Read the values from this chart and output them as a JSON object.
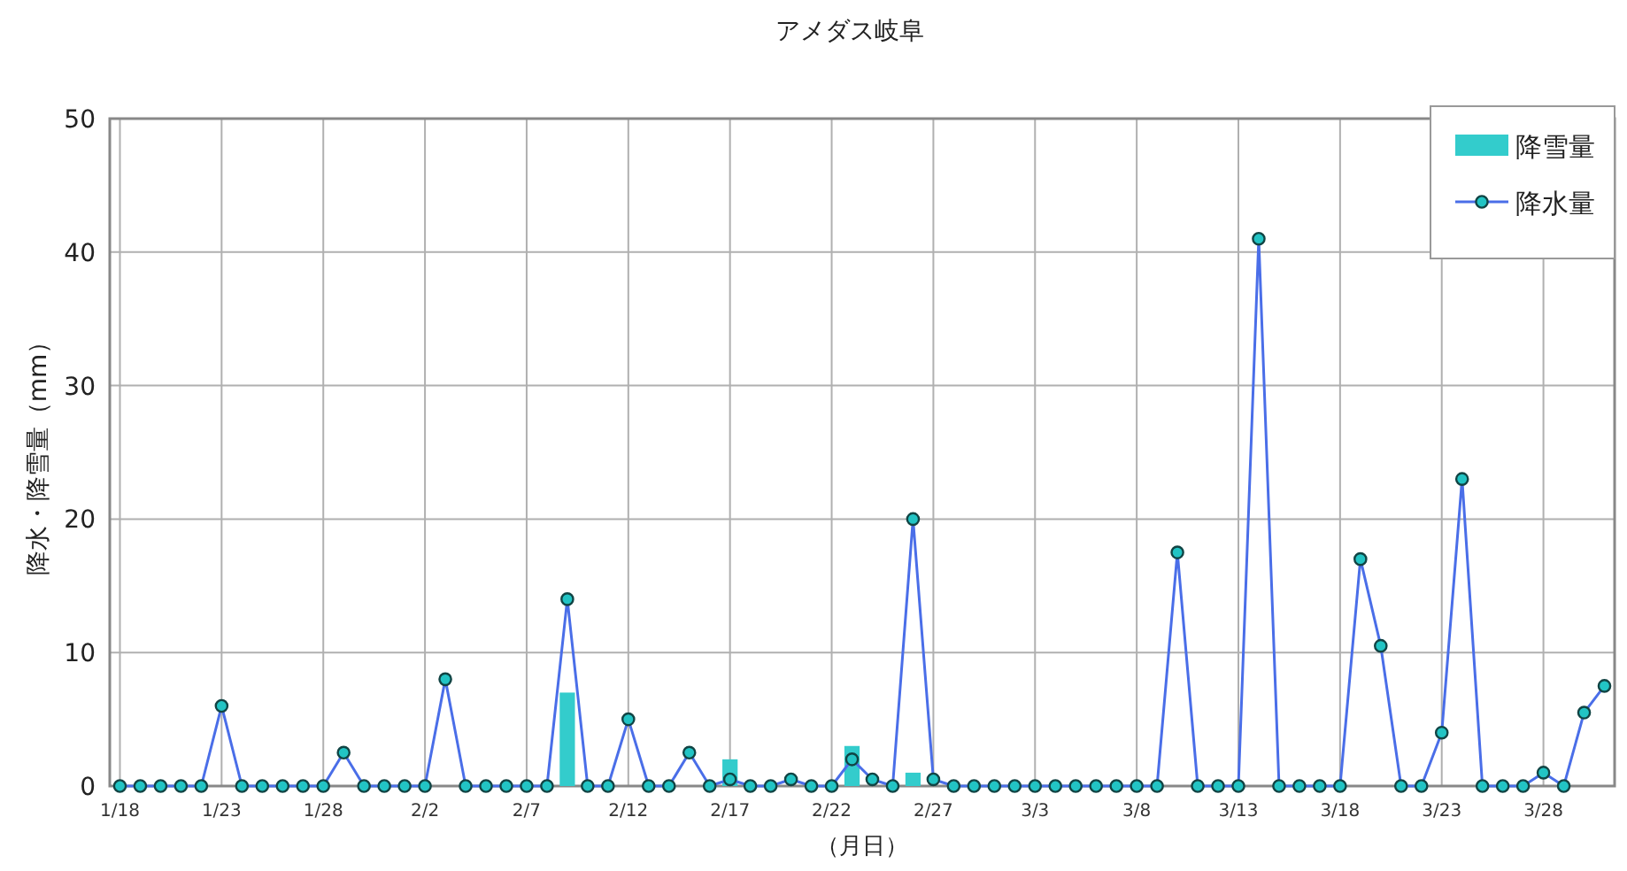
{
  "chart_data": {
    "type": "line",
    "title": "アメダス岐阜",
    "xlabel": "（月日）",
    "ylabel": "降水・降雪量（mm）",
    "categories": [
      "1/18",
      null,
      null,
      null,
      null,
      "1/23",
      null,
      null,
      null,
      null,
      "1/28",
      null,
      null,
      null,
      null,
      "2/2",
      null,
      null,
      null,
      null,
      "2/7",
      null,
      null,
      null,
      null,
      "2/12",
      null,
      null,
      null,
      null,
      "2/17",
      null,
      null,
      null,
      null,
      "2/22",
      null,
      null,
      null,
      null,
      "2/27",
      null,
      null,
      null,
      null,
      "3/3",
      null,
      null,
      null,
      null,
      "3/8",
      null,
      null,
      null,
      null,
      "3/13",
      null,
      null,
      null,
      null,
      "3/18",
      null,
      null,
      null,
      null,
      "3/23",
      null,
      null,
      null,
      null,
      "3/28",
      null,
      null,
      null
    ],
    "series": [
      {
        "name": "降雪量",
        "type": "bar",
        "color": "#33cccc",
        "values": [
          null,
          null,
          null,
          null,
          null,
          null,
          null,
          null,
          null,
          null,
          null,
          null,
          null,
          null,
          null,
          null,
          null,
          null,
          null,
          null,
          null,
          null,
          7,
          null,
          null,
          null,
          null,
          null,
          null,
          null,
          2,
          null,
          null,
          null,
          null,
          null,
          3,
          null,
          null,
          1,
          null,
          null,
          null,
          null,
          null,
          null,
          null,
          null,
          null,
          null,
          null,
          null,
          null,
          null,
          null,
          null,
          null,
          null,
          null,
          null,
          null,
          null,
          null,
          null,
          null,
          null,
          null,
          null,
          null,
          null,
          null,
          null,
          null,
          null
        ]
      },
      {
        "name": "降水量",
        "color": "#4a6ee8",
        "values": [
          0,
          0,
          0,
          0,
          0,
          6,
          0,
          0,
          0,
          0,
          0,
          2.5,
          0,
          0,
          0,
          0,
          8,
          0,
          0,
          0,
          0,
          0,
          14,
          0,
          0,
          5,
          0,
          0,
          2.5,
          0,
          0.5,
          0,
          0,
          0.5,
          0,
          0,
          2,
          0.5,
          0,
          20,
          0.5,
          0,
          0,
          0,
          0,
          0,
          0,
          0,
          0,
          0,
          0,
          0,
          17.5,
          0,
          0,
          0,
          41,
          0,
          0,
          0,
          0,
          17,
          10.5,
          0,
          0,
          4,
          23,
          0,
          0,
          0,
          1,
          0,
          5.5,
          7.5
        ]
      }
    ],
    "ylim": [
      0,
      50
    ],
    "yticks": [
      0,
      10,
      20,
      30,
      40,
      50
    ],
    "grid": true,
    "legend": "top right",
    "marker": "circle"
  }
}
